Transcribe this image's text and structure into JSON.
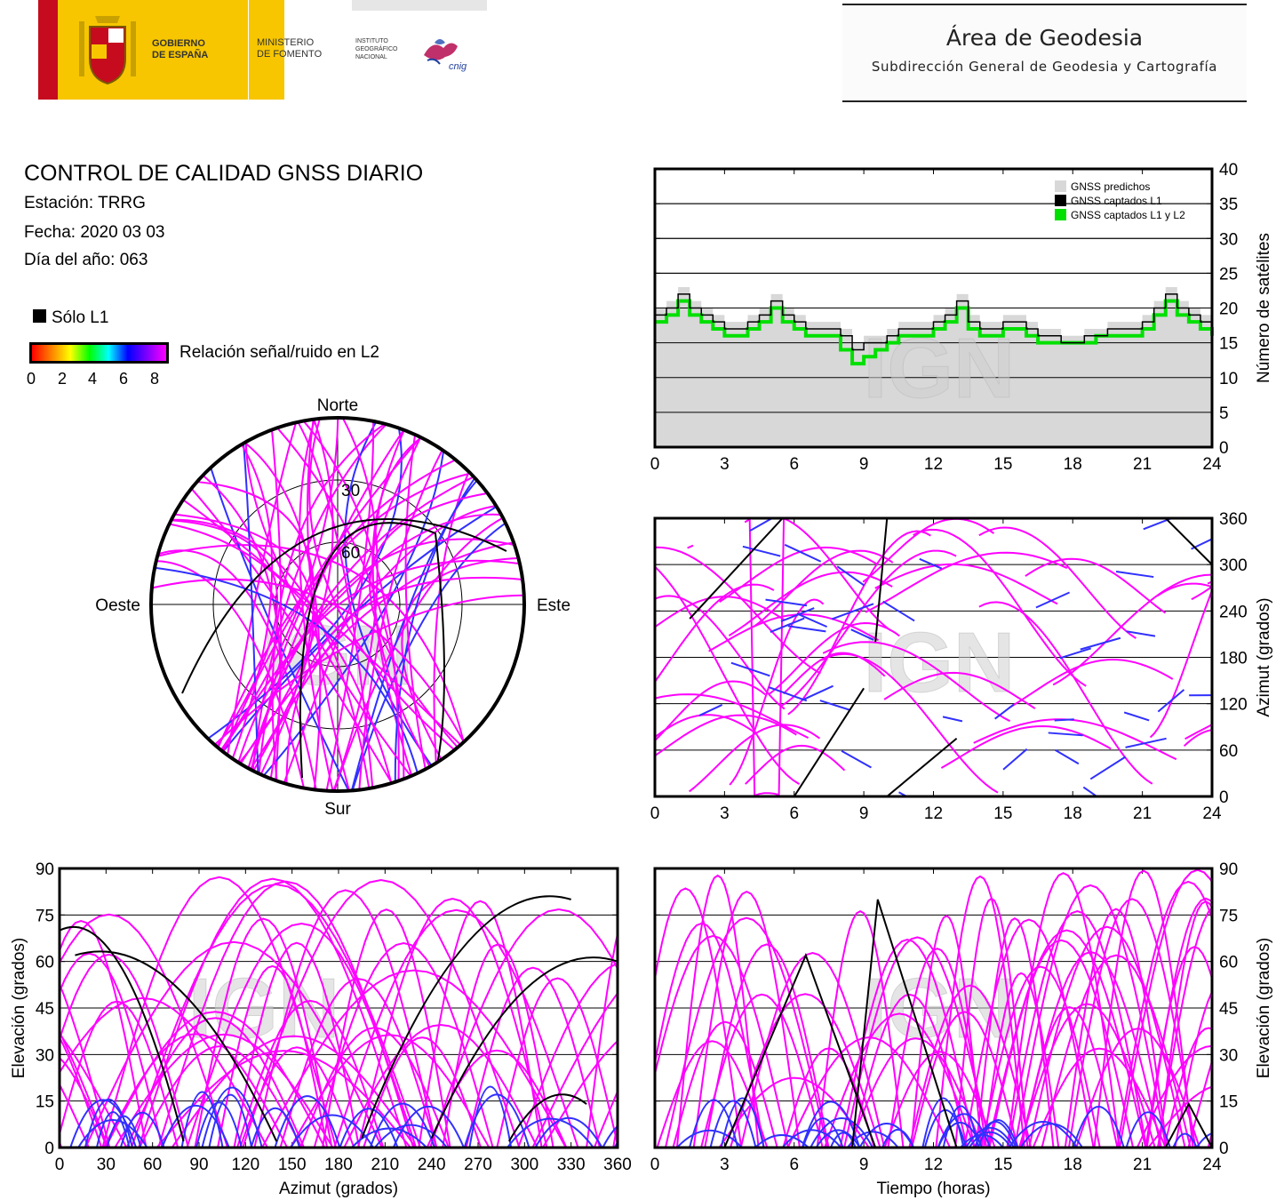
{
  "header": {
    "gobierno": "GOBIERNO\nDE ESPAÑA",
    "ministerio": "MINISTERIO\nDE FOMENTO",
    "instituto": "INSTITUTO\nGEOGRÁFICO\nNACIONAL",
    "cnig": "cnig",
    "area_title": "Área de Geodesia",
    "area_subtitle": "Subdirección General de Geodesia y Cartografía"
  },
  "report": {
    "title": "CONTROL DE CALIDAD GNSS DIARIO",
    "station": "Estación: TRRG",
    "date": "Fecha: 2020 03 03",
    "doy": "Día del año: 063"
  },
  "legend": {
    "l1_only": "Sólo L1",
    "snr_label": "Relación señal/ruido en L2",
    "snr_ticks": [
      "0",
      "2",
      "4",
      "6",
      "8"
    ]
  },
  "watermark": "IGN",
  "colors": {
    "predicted": "#d8d8d8",
    "l1": "#000000",
    "l1l2": "#00e000",
    "track": "#ff00ff",
    "track_low": "#3030ff"
  },
  "chart_data": [
    {
      "type": "area",
      "id": "satellites",
      "ylabel": "Número de satélites",
      "xlim": [
        0,
        24
      ],
      "ylim": [
        0,
        40
      ],
      "xticks": [
        "0",
        "3",
        "6",
        "9",
        "12",
        "15",
        "18",
        "21",
        "24"
      ],
      "yticks": [
        "0",
        "5",
        "10",
        "15",
        "20",
        "25",
        "30",
        "35",
        "40"
      ],
      "legend": [
        "GNSS predichos",
        "GNSS captados L1",
        "GNSS captados L1 y L2"
      ],
      "x": [
        0,
        0.5,
        1,
        1.5,
        2,
        2.5,
        3,
        3.5,
        4,
        4.5,
        5,
        5.5,
        6,
        6.5,
        7,
        7.5,
        8,
        8.5,
        9,
        9.5,
        10,
        10.5,
        11,
        11.5,
        12,
        12.5,
        13,
        13.5,
        14,
        14.5,
        15,
        15.5,
        16,
        16.5,
        17,
        17.5,
        18,
        18.5,
        19,
        19.5,
        20,
        20.5,
        21,
        21.5,
        22,
        22.5,
        23,
        23.5,
        24
      ],
      "series": [
        {
          "name": "GNSS predichos",
          "values": [
            20,
            21,
            23,
            21,
            20,
            19,
            18,
            18,
            19,
            20,
            22,
            20,
            19,
            18,
            18,
            18,
            17,
            15,
            16,
            16,
            17,
            18,
            18,
            18,
            19,
            20,
            22,
            19,
            18,
            18,
            19,
            19,
            18,
            17,
            17,
            16,
            16,
            17,
            17,
            18,
            18,
            18,
            19,
            21,
            23,
            21,
            20,
            19,
            18
          ]
        },
        {
          "name": "GNSS captados L1",
          "values": [
            19,
            20,
            22,
            20,
            19,
            18,
            17,
            17,
            18,
            19,
            21,
            19,
            18,
            17,
            17,
            17,
            16,
            14,
            15,
            15,
            16,
            17,
            17,
            17,
            18,
            19,
            21,
            18,
            17,
            17,
            18,
            18,
            17,
            16,
            16,
            15,
            15,
            16,
            16,
            17,
            17,
            17,
            18,
            20,
            22,
            20,
            19,
            18,
            17
          ]
        },
        {
          "name": "GNSS captados L1 y L2",
          "values": [
            18,
            19,
            21,
            19,
            18,
            17,
            16,
            16,
            17,
            18,
            20,
            18,
            17,
            16,
            16,
            16,
            14,
            12,
            13,
            14,
            15,
            16,
            16,
            16,
            17,
            18,
            20,
            17,
            16,
            16,
            17,
            17,
            16,
            15,
            15,
            15,
            15,
            15,
            16,
            16,
            16,
            16,
            17,
            19,
            21,
            19,
            18,
            17,
            16
          ]
        }
      ]
    },
    {
      "type": "scatter",
      "id": "azimuth-time",
      "ylabel": "Azimut (grados)",
      "xlim": [
        0,
        24
      ],
      "ylim": [
        0,
        360
      ],
      "xticks": [
        "0",
        "3",
        "6",
        "9",
        "12",
        "15",
        "18",
        "21",
        "24"
      ],
      "yticks": [
        "0",
        "60",
        "120",
        "180",
        "240",
        "300",
        "360"
      ]
    },
    {
      "type": "scatter",
      "id": "skyplot",
      "labels": {
        "north": "Norte",
        "south": "Sur",
        "west": "Oeste",
        "east": "Este"
      },
      "rings": [
        "30",
        "60"
      ]
    },
    {
      "type": "scatter",
      "id": "elevation-azimuth",
      "xlabel": "Azimut (grados)",
      "ylabel": "Elevación (grados)",
      "xlim": [
        0,
        360
      ],
      "ylim": [
        0,
        90
      ],
      "xticks": [
        "0",
        "30",
        "60",
        "90",
        "120",
        "150",
        "180",
        "210",
        "240",
        "270",
        "300",
        "330",
        "360"
      ],
      "yticks": [
        "0",
        "15",
        "30",
        "45",
        "60",
        "75",
        "90"
      ]
    },
    {
      "type": "scatter",
      "id": "elevation-time",
      "xlabel": "Tiempo (horas)",
      "ylabel": "Elevación (grados)",
      "xlim": [
        0,
        24
      ],
      "ylim": [
        0,
        90
      ],
      "xticks": [
        "0",
        "3",
        "6",
        "9",
        "12",
        "15",
        "18",
        "21",
        "24"
      ],
      "yticks": [
        "0",
        "15",
        "30",
        "45",
        "60",
        "75",
        "90"
      ]
    }
  ]
}
